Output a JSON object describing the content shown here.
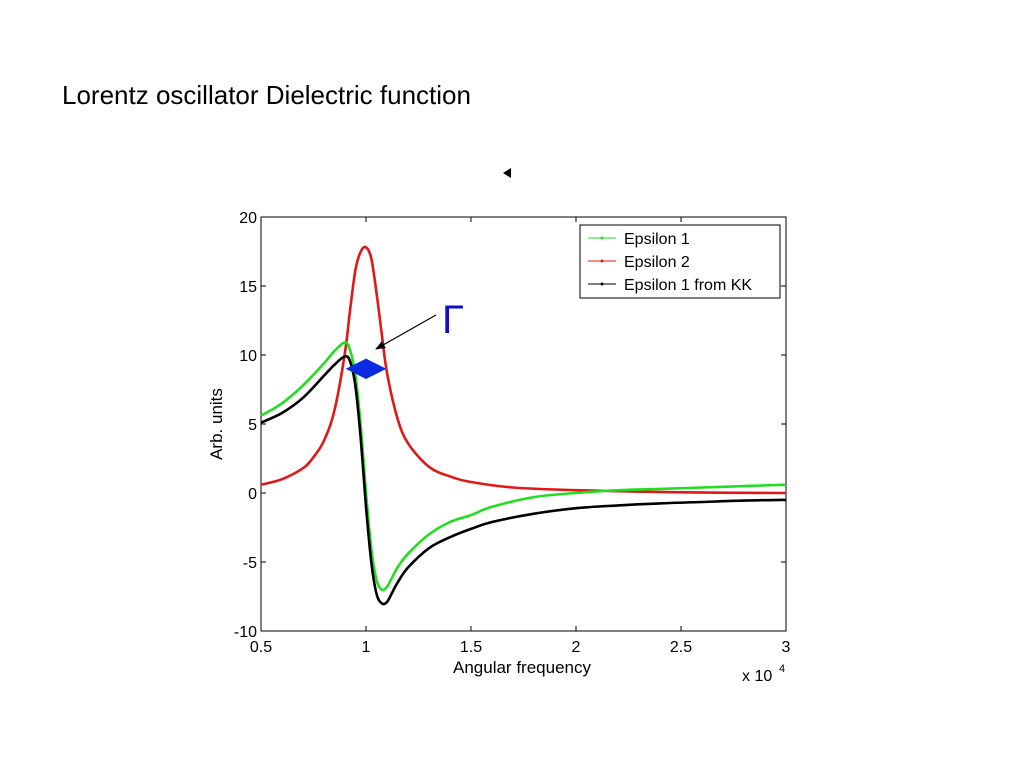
{
  "slide": {
    "title": "Lorentz oscillator Dielectric function"
  },
  "chart_data": {
    "type": "line",
    "xlabel": "Angular frequency",
    "ylabel": "Arb. units",
    "x_multiplier_label": "x 10",
    "x_multiplier_exponent": "4",
    "xlim": [
      5000,
      30000
    ],
    "ylim": [
      -10,
      20
    ],
    "xticks": [
      5000,
      10000,
      15000,
      20000,
      25000,
      30000
    ],
    "xtick_labels": [
      "0.5",
      "1",
      "1.5",
      "2",
      "2.5",
      "3"
    ],
    "yticks": [
      -10,
      -5,
      0,
      5,
      10,
      15,
      20
    ],
    "ytick_labels": [
      "-10",
      "-5",
      "0",
      "5",
      "10",
      "15",
      "20"
    ],
    "grid": false,
    "legend_position": "top-right",
    "annotation_label": "Γ",
    "annotation_color": "#1010c8",
    "width_arrow_color": "#0a2be0",
    "series": [
      {
        "name": "Epsilon 1",
        "color": "#22dd22",
        "x": [
          5000,
          6000,
          7000,
          8000,
          8500,
          9000,
          9250,
          9500,
          9750,
          10000,
          10250,
          10500,
          10750,
          11000,
          11250,
          11500,
          12000,
          13000,
          14000,
          15000,
          16000,
          18000,
          20000,
          22000,
          24000,
          26000,
          28000,
          30000
        ],
        "y": [
          5.6,
          6.5,
          7.8,
          9.4,
          10.3,
          10.9,
          10.3,
          8.5,
          4.8,
          0.0,
          -4.0,
          -6.3,
          -7.0,
          -6.8,
          -6.1,
          -5.4,
          -4.4,
          -3.0,
          -2.1,
          -1.6,
          -1.0,
          -0.3,
          0.0,
          0.2,
          0.3,
          0.4,
          0.5,
          0.6
        ]
      },
      {
        "name": "Epsilon 2",
        "color": "#e01818",
        "x": [
          5000,
          6000,
          7000,
          7500,
          8000,
          8500,
          9000,
          9250,
          9500,
          9750,
          10000,
          10250,
          10500,
          10750,
          11000,
          11500,
          12000,
          13000,
          14000,
          15000,
          17000,
          20000,
          25000,
          30000
        ],
        "y": [
          0.6,
          1.0,
          1.8,
          2.6,
          3.8,
          6.0,
          10.2,
          13.4,
          16.2,
          17.5,
          17.8,
          17.0,
          14.5,
          11.5,
          8.7,
          5.4,
          3.6,
          1.9,
          1.2,
          0.8,
          0.4,
          0.2,
          0.05,
          0.0
        ]
      },
      {
        "name": "Epsilon 1 from KK",
        "color": "#000000",
        "x": [
          5000,
          6000,
          7000,
          8000,
          8500,
          9000,
          9250,
          9500,
          9750,
          10000,
          10250,
          10500,
          10750,
          11000,
          11250,
          11500,
          12000,
          13000,
          14000,
          15000,
          16000,
          18000,
          20000,
          22000,
          24000,
          26000,
          28000,
          30000
        ],
        "y": [
          5.1,
          5.8,
          6.9,
          8.5,
          9.3,
          9.9,
          9.5,
          7.7,
          3.9,
          -1.0,
          -5.0,
          -7.3,
          -8.0,
          -7.9,
          -7.2,
          -6.5,
          -5.4,
          -4.0,
          -3.2,
          -2.6,
          -2.1,
          -1.5,
          -1.1,
          -0.9,
          -0.75,
          -0.65,
          -0.55,
          -0.5
        ]
      }
    ]
  }
}
